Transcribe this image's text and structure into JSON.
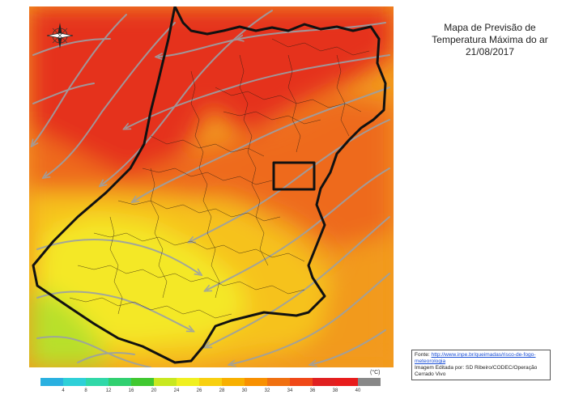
{
  "title": {
    "line1": "Mapa de Previsão de",
    "line2": "Temperatura Máxima  do ar",
    "line3": "21/08/2017"
  },
  "source": {
    "label": "Fonte: ",
    "link_text": "http://www.inpe.br/queimadas/risco-de-fogo-meteorologia",
    "edited_by": "Imagem Editada por: SD Ribeiro/CODEC/Operação Cerrado Vivo"
  },
  "legend": {
    "unit": "(°C)",
    "ticks": [
      "4",
      "8",
      "12",
      "16",
      "20",
      "24",
      "26",
      "28",
      "30",
      "32",
      "34",
      "36",
      "38",
      "40"
    ],
    "colors": [
      "#2ab0e0",
      "#2ed0d8",
      "#30d8a8",
      "#30d070",
      "#40c830",
      "#c8e820",
      "#f0f020",
      "#f8d010",
      "#f8b000",
      "#f89000",
      "#f07010",
      "#f04818",
      "#e02020",
      "#e81c1c",
      "#888888"
    ]
  },
  "map": {
    "compass": "compass-rose-icon",
    "color_zones": {
      "lime": "#b8e02a",
      "yellow": "#f4e826",
      "gold": "#f6c21c",
      "orange": "#f29a1e",
      "deep_orange": "#ee6a1e",
      "red": "#e5301c"
    }
  }
}
